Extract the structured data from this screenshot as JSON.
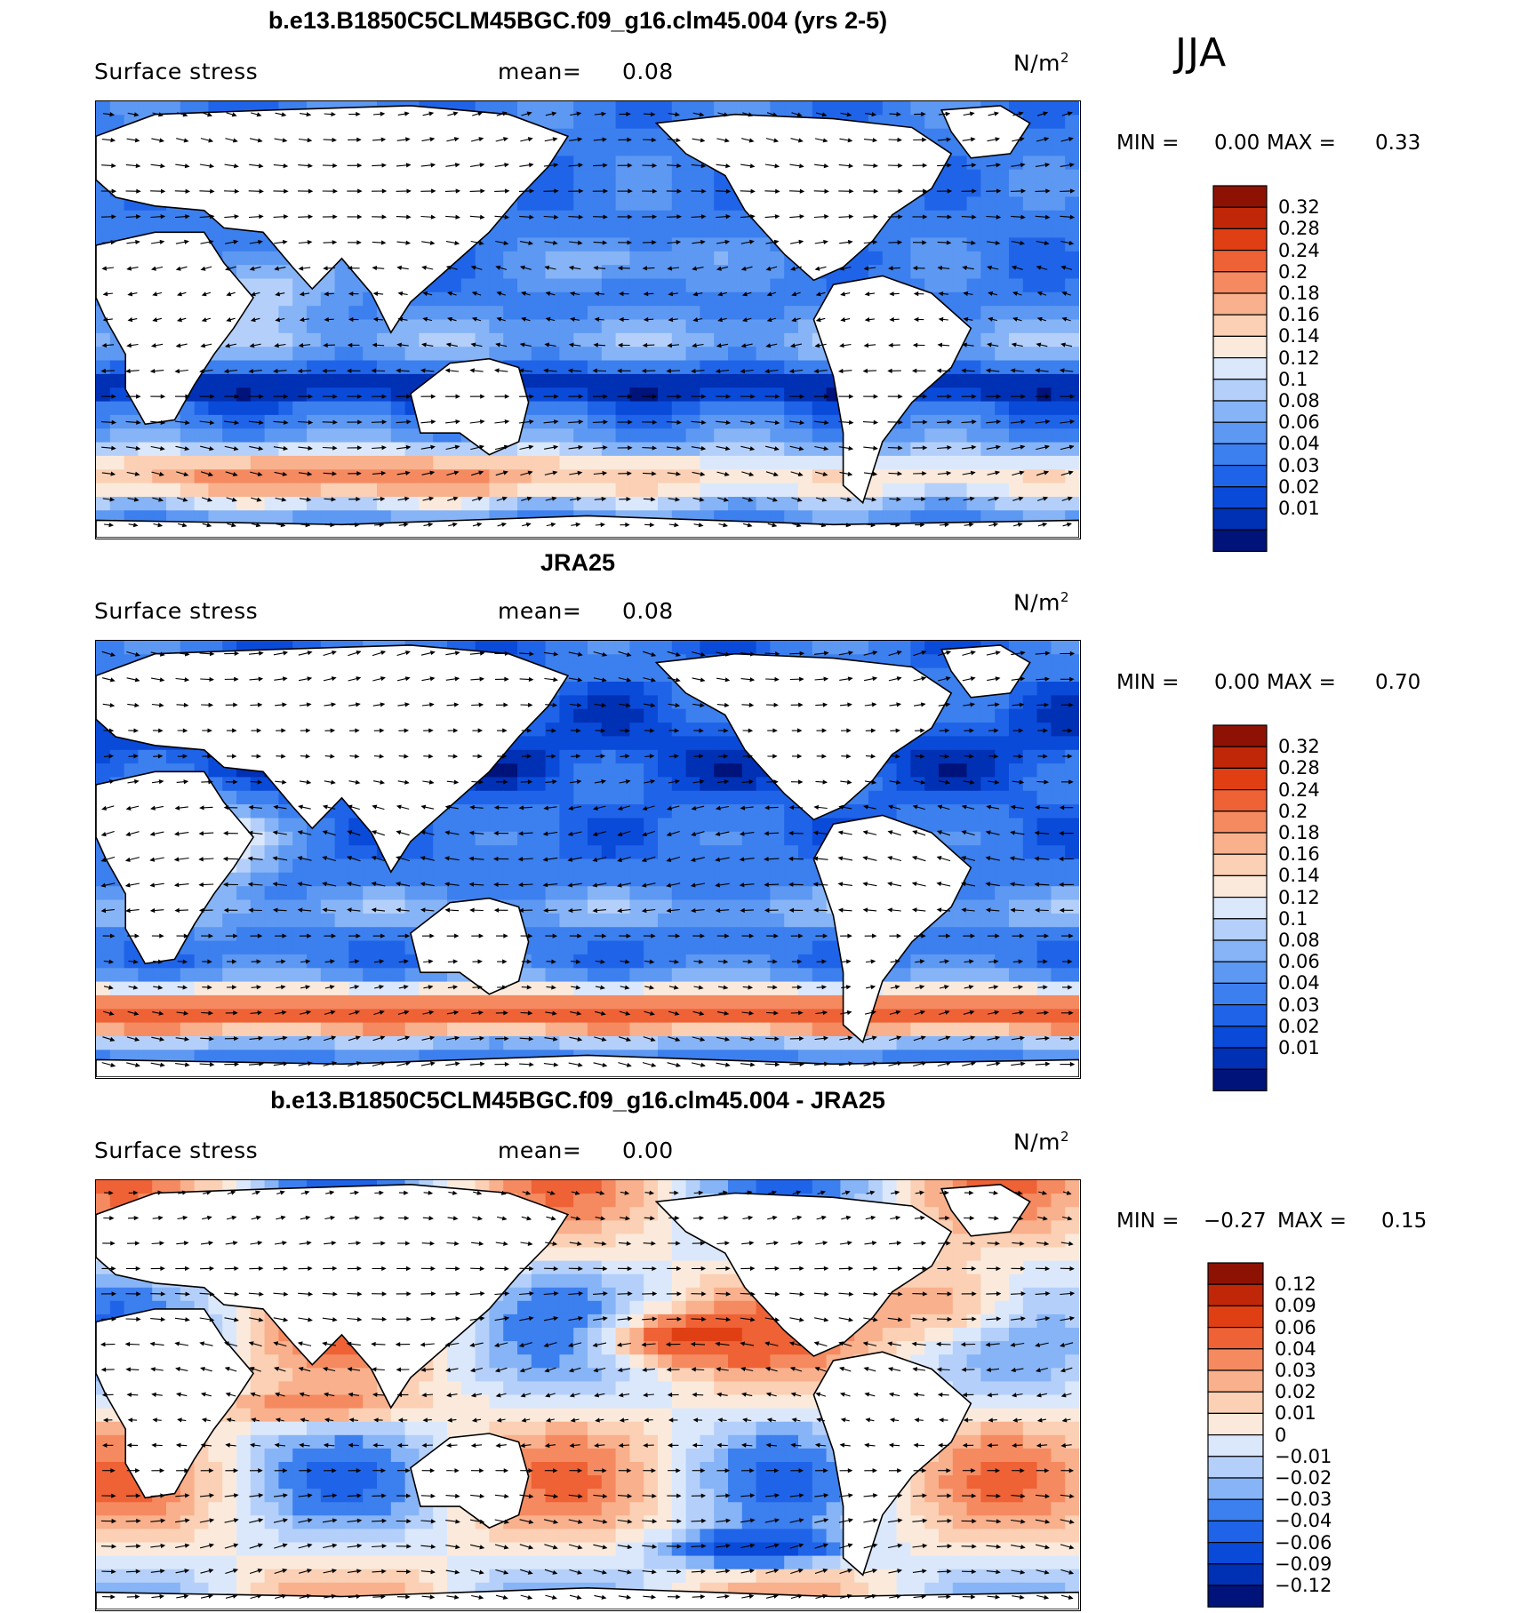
{
  "season": "JJA",
  "palette": {
    "sequential": [
      "#00137a",
      "#0030b4",
      "#0a4ad8",
      "#1f64e8",
      "#3c7fee",
      "#5d98f2",
      "#86b4f6",
      "#b4d0fa",
      "#dbe8fc",
      "#fbeadb",
      "#fbd0b4",
      "#f9b08c",
      "#f58a60",
      "#ee6236",
      "#e03f14",
      "#c02708",
      "#8e1204"
    ],
    "difference": [
      "#00137a",
      "#0030b4",
      "#0a4ad8",
      "#1f64e8",
      "#3c7fee",
      "#86b4f6",
      "#b4d0fa",
      "#dbe8fc",
      "#fbeadb",
      "#fbd0b4",
      "#f9b08c",
      "#f58a60",
      "#ee6236",
      "#e03f14",
      "#c02708",
      "#8e1204"
    ]
  },
  "panels": [
    {
      "title": "b.e13.B1850C5CLM45BGC.f09_g16.clm45.004 (yrs 2-5)",
      "variable": "Surface stress",
      "mean_label": "mean=",
      "mean_value": "0.08",
      "units": "N/m",
      "units_sup": "2",
      "min_label": "MIN =",
      "min_value": "0.00",
      "max_label": "MAX =",
      "max_value": "0.33",
      "levels": [
        "0.32",
        "0.28",
        "0.24",
        "0.2",
        "0.18",
        "0.16",
        "0.14",
        "0.12",
        "0.1",
        "0.08",
        "0.06",
        "0.04",
        "0.03",
        "0.02",
        "0.01"
      ]
    },
    {
      "title": "JRA25",
      "variable": "Surface stress",
      "mean_label": "mean=",
      "mean_value": "0.08",
      "units": "N/m",
      "units_sup": "2",
      "min_label": "MIN =",
      "min_value": "0.00",
      "max_label": "MAX =",
      "max_value": "0.70",
      "levels": [
        "0.32",
        "0.28",
        "0.24",
        "0.2",
        "0.18",
        "0.16",
        "0.14",
        "0.12",
        "0.1",
        "0.08",
        "0.06",
        "0.04",
        "0.03",
        "0.02",
        "0.01"
      ]
    },
    {
      "title": "b.e13.B1850C5CLM45BGC.f09_g16.clm45.004 - JRA25",
      "variable": "Surface stress",
      "mean_label": "mean=",
      "mean_value": "0.00",
      "units": "N/m",
      "units_sup": "2",
      "min_label": "MIN =",
      "min_value": "−0.27",
      "max_label": "MAX =",
      "max_value": "0.15",
      "levels": [
        "0.12",
        "0.09",
        "0.06",
        "0.04",
        "0.03",
        "0.02",
        "0.01",
        "0",
        "−0.01",
        "−0.02",
        "−0.03",
        "−0.04",
        "−0.06",
        "−0.09",
        "−0.12"
      ]
    }
  ],
  "chart_data": [
    {
      "type": "heatmap",
      "title": "b.e13.B1850C5CLM45BGC.f09_g16.clm45.004 (yrs 2-5)",
      "variable": "Surface stress",
      "units": "N/m2",
      "season": "JJA",
      "mean": 0.08,
      "min": 0.0,
      "max": 0.33,
      "contour_levels": [
        0.01,
        0.02,
        0.03,
        0.04,
        0.06,
        0.08,
        0.1,
        0.12,
        0.14,
        0.16,
        0.18,
        0.2,
        0.24,
        0.28,
        0.32
      ],
      "overlay": "wind stress vectors"
    },
    {
      "type": "heatmap",
      "title": "JRA25",
      "variable": "Surface stress",
      "units": "N/m2",
      "season": "JJA",
      "mean": 0.08,
      "min": 0.0,
      "max": 0.7,
      "contour_levels": [
        0.01,
        0.02,
        0.03,
        0.04,
        0.06,
        0.08,
        0.1,
        0.12,
        0.14,
        0.16,
        0.18,
        0.2,
        0.24,
        0.28,
        0.32
      ],
      "overlay": "wind stress vectors"
    },
    {
      "type": "heatmap",
      "title": "b.e13.B1850C5CLM45BGC.f09_g16.clm45.004 - JRA25",
      "variable": "Surface stress",
      "units": "N/m2",
      "season": "JJA",
      "mean": 0.0,
      "min": -0.27,
      "max": 0.15,
      "contour_levels": [
        -0.12,
        -0.09,
        -0.06,
        -0.04,
        -0.03,
        -0.02,
        -0.01,
        0,
        0.01,
        0.02,
        0.03,
        0.04,
        0.06,
        0.09,
        0.12
      ],
      "overlay": "wind stress difference vectors"
    }
  ]
}
